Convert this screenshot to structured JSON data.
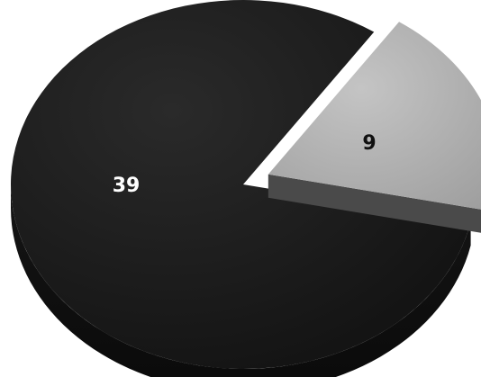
{
  "chart_data": {
    "type": "pie",
    "style": "3d-exploded",
    "slices": [
      {
        "label": "39",
        "value": 39,
        "color": "#1c1c1c",
        "label_color": "#ffffff"
      },
      {
        "label": "9",
        "value": 9,
        "color": "#b4b4b4",
        "label_color": "#111111",
        "exploded": true
      }
    ]
  }
}
